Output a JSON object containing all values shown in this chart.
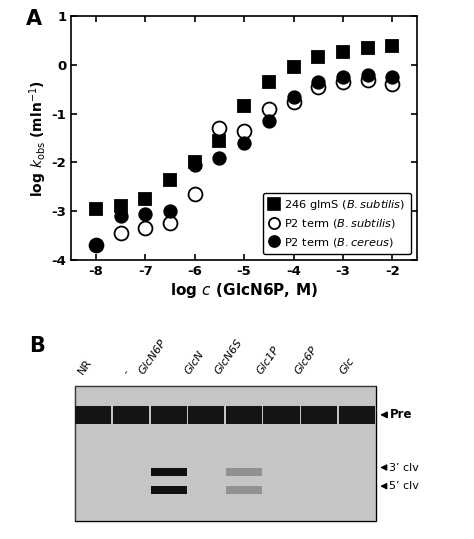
{
  "panel_A": {
    "xlim": [
      -8.5,
      -1.5
    ],
    "ylim": [
      -4,
      1
    ],
    "xticks": [
      -8,
      -7,
      -6,
      -5,
      -4,
      -3,
      -2
    ],
    "yticks": [
      -4,
      -3,
      -2,
      -1,
      0,
      1
    ],
    "ytick_labels": [
      "-4",
      "-3",
      "-2",
      "-1",
      "0",
      "1"
    ],
    "series": [
      {
        "marker": "s",
        "filled": true,
        "x": [
          -8,
          -7.5,
          -7,
          -6.5,
          -6,
          -5.5,
          -5,
          -4.5,
          -4,
          -3.5,
          -3,
          -2.5,
          -2
        ],
        "y": [
          -2.95,
          -2.9,
          -2.75,
          -2.35,
          -2.0,
          -1.55,
          -0.85,
          -0.35,
          -0.05,
          0.17,
          0.27,
          0.35,
          0.38
        ]
      },
      {
        "marker": "o",
        "filled": false,
        "x": [
          -8,
          -7.5,
          -7,
          -6.5,
          -6,
          -5.5,
          -5,
          -4.5,
          -4,
          -3.5,
          -3,
          -2.5,
          -2
        ],
        "y": [
          -3.7,
          -3.45,
          -3.35,
          -3.25,
          -2.65,
          -1.3,
          -1.35,
          -0.9,
          -0.75,
          -0.45,
          -0.35,
          -0.3,
          -0.4
        ]
      },
      {
        "marker": "o",
        "filled": true,
        "x": [
          -8,
          -7.5,
          -7,
          -6.5,
          -6,
          -5.5,
          -5,
          -4.5,
          -4,
          -3.5,
          -3,
          -2.5,
          -2
        ],
        "y": [
          -3.7,
          -3.1,
          -3.05,
          -3.0,
          -2.05,
          -1.9,
          -1.6,
          -1.15,
          -0.65,
          -0.35,
          -0.25,
          -0.2,
          -0.25
        ]
      }
    ]
  },
  "panel_B": {
    "lane_labels": [
      "NR",
      "-",
      "GlcN6P",
      "GlcN",
      "GlcN6S",
      "Glc1P",
      "Glc6P",
      "Glc"
    ],
    "lane_labels_italic": [
      false,
      false,
      true,
      true,
      true,
      true,
      true,
      true
    ],
    "num_lanes": 8,
    "right_labels": [
      "Pre",
      "3' clv",
      "5' clv"
    ],
    "active_strong": [
      2
    ],
    "active_weak": [
      4
    ]
  }
}
